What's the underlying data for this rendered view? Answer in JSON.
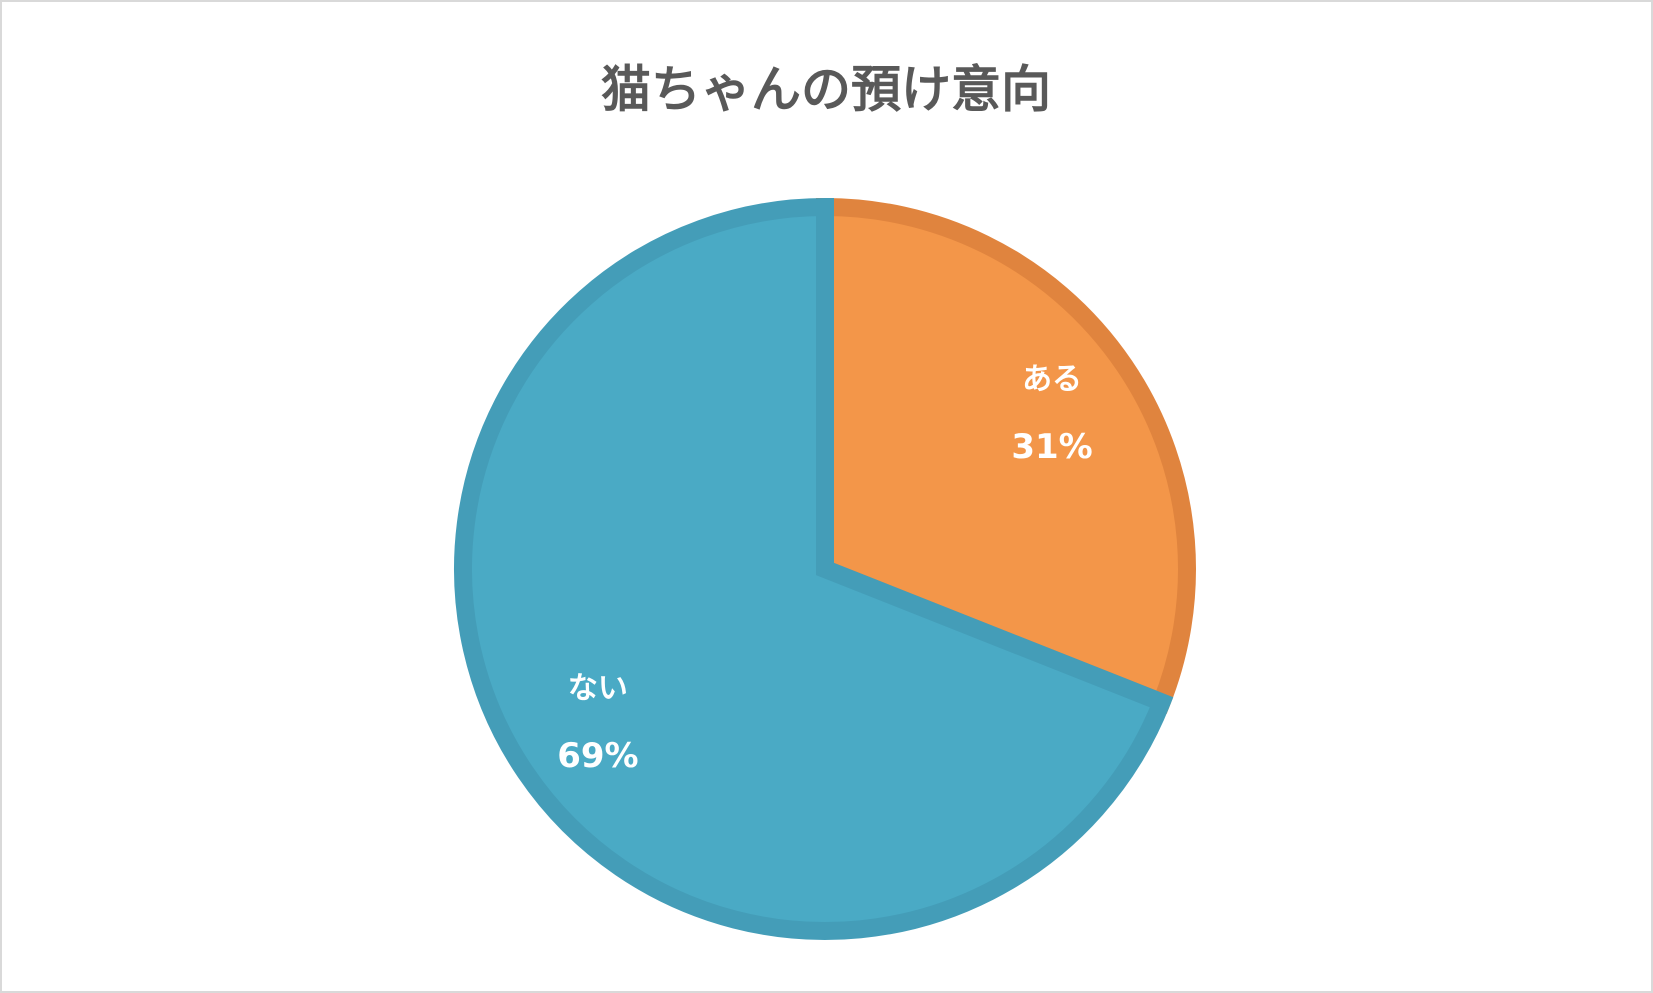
{
  "chart_data": {
    "type": "pie",
    "title": "猫ちゃんの預け意向",
    "categories": [
      "ある",
      "ない"
    ],
    "values": [
      31,
      69
    ],
    "value_labels": [
      "31%",
      "69%"
    ],
    "colors": [
      "#f39649",
      "#4aaac5"
    ],
    "edge_colors": [
      "#e0843e",
      "#449db8"
    ]
  }
}
